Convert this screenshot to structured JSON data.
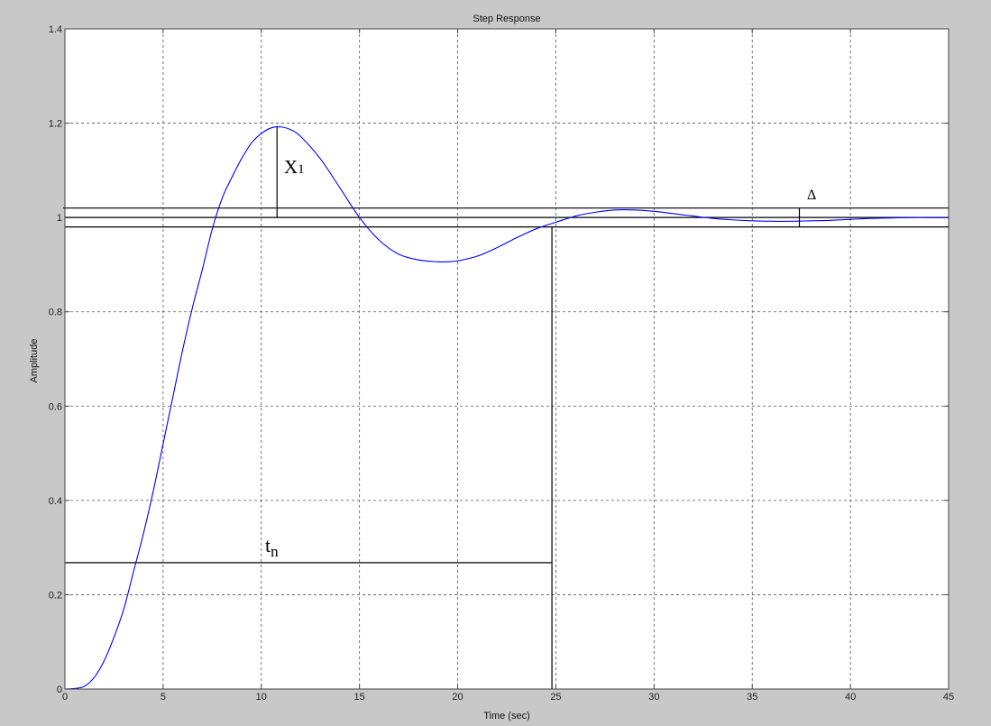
{
  "chart_data": {
    "type": "line",
    "title": "Step Response",
    "xlabel": "Time (sec)",
    "ylabel": "Amplitude",
    "xlim": [
      0,
      45
    ],
    "ylim": [
      0,
      1.4
    ],
    "xticks": [
      0,
      5,
      10,
      15,
      20,
      25,
      30,
      35,
      40,
      45
    ],
    "yticks": [
      0,
      0.2,
      0.4,
      0.6,
      0.8,
      1,
      1.2,
      1.4
    ],
    "xtick_labels": [
      "0",
      "5",
      "10",
      "15",
      "20",
      "25",
      "30",
      "35",
      "40",
      "45"
    ],
    "ytick_labels": [
      "0",
      "0.2",
      "0.4",
      "0.6",
      "0.8",
      "1",
      "1.2",
      "1.4"
    ],
    "grid": true,
    "colors": {
      "series": "#0000ff",
      "background": "#c8c8c8",
      "axes": "#ffffff",
      "annotation": "#000000"
    },
    "series": [
      {
        "x": [
          0,
          0.5,
          1,
          1.5,
          2,
          2.5,
          3,
          3.5,
          4,
          4.5,
          5,
          5.5,
          6,
          6.5,
          7,
          7.5,
          8,
          8.5,
          9,
          9.5,
          10,
          10.5,
          11,
          11.5,
          12,
          13,
          14,
          15,
          16,
          17,
          18,
          19,
          19.5,
          20,
          21,
          22,
          23,
          24,
          25,
          26,
          27,
          28,
          29,
          30,
          31,
          32,
          33,
          34,
          35,
          36,
          37,
          38,
          39,
          40,
          41,
          42,
          43,
          44,
          45
        ],
        "y": [
          0,
          0.001,
          0.006,
          0.025,
          0.06,
          0.11,
          0.17,
          0.25,
          0.33,
          0.42,
          0.52,
          0.62,
          0.72,
          0.81,
          0.89,
          0.975,
          1.04,
          1.085,
          1.125,
          1.158,
          1.178,
          1.19,
          1.192,
          1.186,
          1.172,
          1.125,
          1.063,
          1.0,
          0.952,
          0.922,
          0.91,
          0.906,
          0.906,
          0.908,
          0.918,
          0.936,
          0.957,
          0.976,
          0.99,
          1.003,
          1.011,
          1.016,
          1.016,
          1.013,
          1.008,
          1.003,
          0.998,
          0.995,
          0.993,
          0.992,
          0.992,
          0.993,
          0.994,
          0.996,
          0.998,
          0.999,
          1.0,
          1.0,
          1.0
        ]
      }
    ],
    "annotations": {
      "band_upper": 1.02,
      "steady_state": 1.0,
      "band_lower": 0.98,
      "x1": {
        "label": "X",
        "sub": "1",
        "t": 10.8,
        "from": 1.0,
        "to": 1.192
      },
      "tn": {
        "label": "t",
        "sub": "n",
        "t": 24.8,
        "level": 0.268
      },
      "delta": {
        "label": "Δ",
        "t": 37.4
      }
    }
  }
}
